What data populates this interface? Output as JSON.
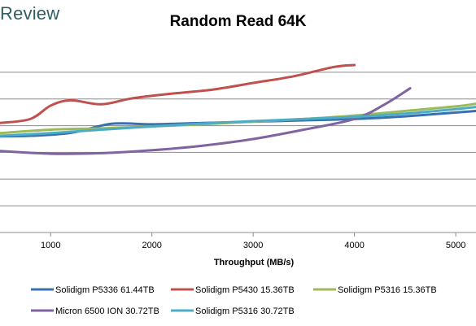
{
  "header": {
    "brand": "Review"
  },
  "chart_data": {
    "type": "line",
    "title": "Random Read 64K",
    "xlabel": "Throughput (MB/s)",
    "ylabel": "",
    "xlim": [
      500,
      5200
    ],
    "ylim": [
      0,
      7.0
    ],
    "xticks": [
      1000,
      2000,
      3000,
      4000,
      5000
    ],
    "xtick_labels": [
      "1000",
      "2000",
      "3000",
      "4000",
      "5000"
    ],
    "yticks": [
      1,
      2,
      3,
      4,
      5,
      6
    ],
    "grid": "horizontal",
    "legend_position": "bottom",
    "series": [
      {
        "name": "Solidigm P5336 61.44TB",
        "color": "#3a6fb0",
        "points": [
          [
            500,
            3.6
          ],
          [
            800,
            3.62
          ],
          [
            1200,
            3.73
          ],
          [
            1600,
            4.07
          ],
          [
            2000,
            4.05
          ],
          [
            2500,
            4.1
          ],
          [
            3000,
            4.15
          ],
          [
            3500,
            4.2
          ],
          [
            4000,
            4.25
          ],
          [
            4500,
            4.35
          ],
          [
            5200,
            4.55
          ]
        ]
      },
      {
        "name": "Solidigm P5430 15.36TB",
        "color": "#c0504d",
        "points": [
          [
            500,
            4.1
          ],
          [
            800,
            4.25
          ],
          [
            1000,
            4.75
          ],
          [
            1200,
            4.95
          ],
          [
            1500,
            4.8
          ],
          [
            1800,
            5.02
          ],
          [
            2200,
            5.2
          ],
          [
            2600,
            5.35
          ],
          [
            3000,
            5.6
          ],
          [
            3400,
            5.85
          ],
          [
            3800,
            6.2
          ],
          [
            4000,
            6.27
          ]
        ]
      },
      {
        "name": "Solidigm P5316 15.36TB",
        "color": "#9bbb59",
        "points": [
          [
            500,
            3.72
          ],
          [
            1000,
            3.85
          ],
          [
            1500,
            3.9
          ],
          [
            2000,
            3.97
          ],
          [
            2500,
            4.05
          ],
          [
            3000,
            4.15
          ],
          [
            3500,
            4.25
          ],
          [
            4000,
            4.38
          ],
          [
            4500,
            4.55
          ],
          [
            5000,
            4.72
          ],
          [
            5200,
            4.82
          ]
        ]
      },
      {
        "name": "Micron 6500 ION 30.72TB",
        "color": "#8064a2",
        "points": [
          [
            500,
            3.05
          ],
          [
            1000,
            2.95
          ],
          [
            1500,
            2.97
          ],
          [
            2000,
            3.08
          ],
          [
            2500,
            3.25
          ],
          [
            3000,
            3.5
          ],
          [
            3500,
            3.85
          ],
          [
            4000,
            4.25
          ],
          [
            4300,
            4.8
          ],
          [
            4550,
            5.4
          ]
        ]
      },
      {
        "name": "Solidigm P5316 30.72TB",
        "color": "#4bacc6",
        "points": [
          [
            500,
            3.62
          ],
          [
            1000,
            3.72
          ],
          [
            1500,
            3.85
          ],
          [
            2000,
            3.97
          ],
          [
            2500,
            4.08
          ],
          [
            3000,
            4.17
          ],
          [
            3500,
            4.25
          ],
          [
            4000,
            4.33
          ],
          [
            4500,
            4.45
          ],
          [
            5000,
            4.62
          ],
          [
            5200,
            4.7
          ]
        ]
      }
    ]
  }
}
